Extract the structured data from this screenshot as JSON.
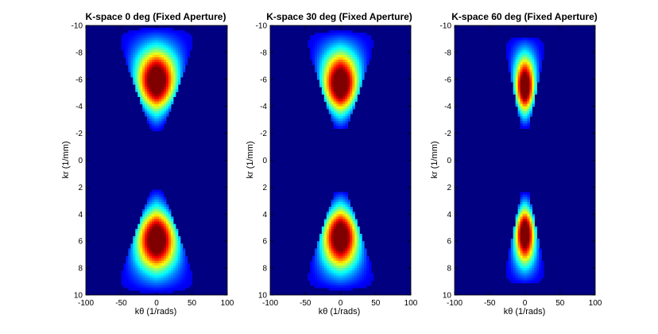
{
  "chart_data": [
    {
      "type": "heatmap",
      "title": "K-space 0 deg (Fixed Aperture)",
      "xlabel": "kθ (1/rads)",
      "ylabel": "kr  (1/mm)",
      "xlim": [
        -100,
        100
      ],
      "ylim": [
        -10,
        10
      ],
      "y_reversed": true,
      "xticks": [
        -100,
        -50,
        0,
        50,
        100
      ],
      "yticks": [
        -10,
        -8,
        -6,
        -4,
        -2,
        0,
        2,
        4,
        6,
        8,
        10
      ],
      "colormap": "jet",
      "background_value": 0,
      "lobes": [
        {
          "center_x": 0,
          "center_kr": -5.9,
          "spread_x": 20,
          "spread_kr": 1.3,
          "triangle_half_width_top": 60,
          "triangle_half_width_bottom": 8,
          "kr_top": -9.8,
          "kr_bottom": -2.2
        },
        {
          "center_x": 0,
          "center_kr": 5.9,
          "spread_x": 20,
          "spread_kr": 1.3,
          "triangle_half_width_top": 8,
          "triangle_half_width_bottom": 60,
          "kr_top": 2.2,
          "kr_bottom": 9.8
        }
      ]
    },
    {
      "type": "heatmap",
      "title": "K-space 30 deg (Fixed Aperture)",
      "xlabel": "kθ (1/rads)",
      "ylabel": "kr  (1/mm)",
      "xlim": [
        -100,
        100
      ],
      "ylim": [
        -10,
        10
      ],
      "y_reversed": true,
      "xticks": [
        -100,
        -50,
        0,
        50,
        100
      ],
      "yticks": [
        -10,
        -8,
        -6,
        -4,
        -2,
        0,
        2,
        4,
        6,
        8,
        10
      ],
      "colormap": "jet",
      "background_value": 0,
      "lobes": [
        {
          "center_x": 0,
          "center_kr": -5.7,
          "spread_x": 18,
          "spread_kr": 1.3,
          "triangle_half_width_top": 55,
          "triangle_half_width_bottom": 8,
          "kr_top": -9.6,
          "kr_bottom": -2.3
        },
        {
          "center_x": 0,
          "center_kr": 5.7,
          "spread_x": 18,
          "spread_kr": 1.3,
          "triangle_half_width_top": 8,
          "triangle_half_width_bottom": 55,
          "kr_top": 2.3,
          "kr_bottom": 9.6
        }
      ]
    },
    {
      "type": "heatmap",
      "title": "K-space 60 deg (Fixed Aperture)",
      "xlabel": "kθ (1/rads)",
      "ylabel": "kr  (1/mm)",
      "xlim": [
        -100,
        100
      ],
      "ylim": [
        -10,
        10
      ],
      "y_reversed": true,
      "xticks": [
        -100,
        -50,
        0,
        50,
        100
      ],
      "yticks": [
        -10,
        -8,
        -6,
        -4,
        -2,
        0,
        2,
        4,
        6,
        8,
        10
      ],
      "colormap": "jet",
      "background_value": 0,
      "lobes": [
        {
          "center_x": 0,
          "center_kr": -5.5,
          "spread_x": 10,
          "spread_kr": 1.2,
          "triangle_half_width_top": 32,
          "triangle_half_width_bottom": 5,
          "kr_top": -9.2,
          "kr_bottom": -2.4
        },
        {
          "center_x": 0,
          "center_kr": 5.5,
          "spread_x": 10,
          "spread_kr": 1.2,
          "triangle_half_width_top": 5,
          "triangle_half_width_bottom": 32,
          "kr_top": 2.4,
          "kr_bottom": 9.2
        }
      ]
    }
  ]
}
